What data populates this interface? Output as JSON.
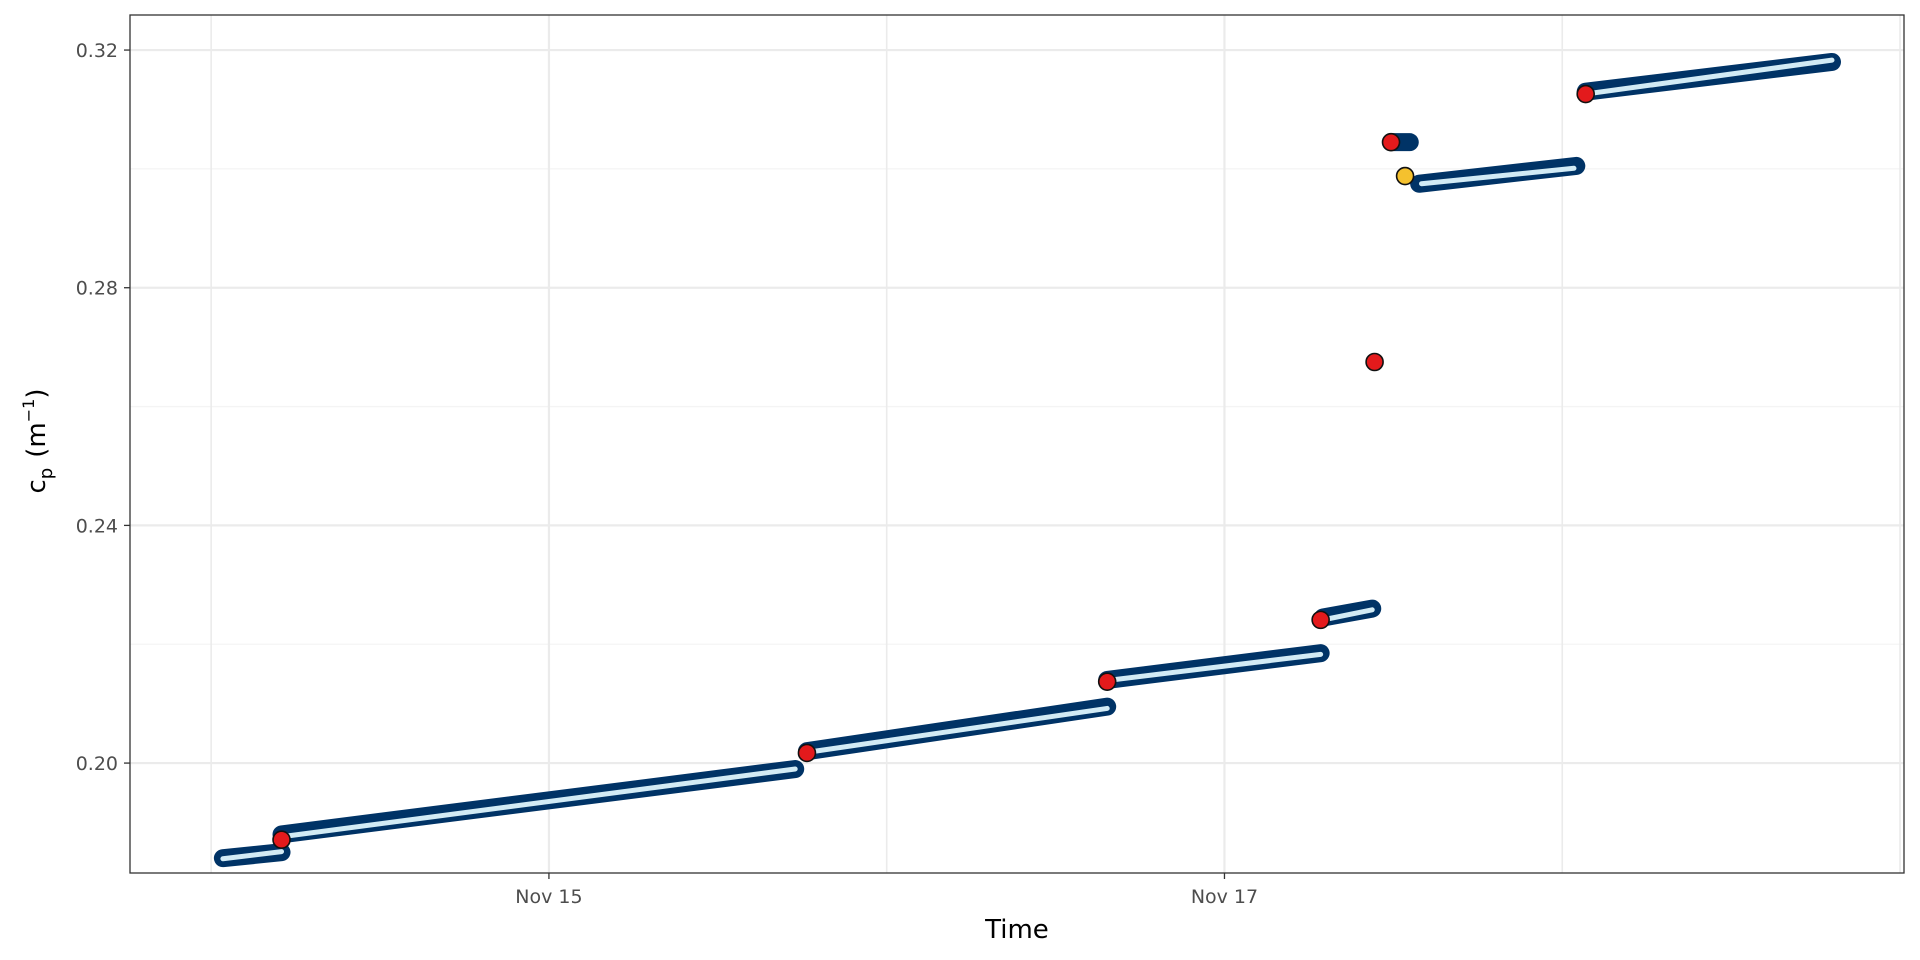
{
  "chart_data": {
    "type": "scatter",
    "title": "",
    "xlabel": "Time",
    "ylabel": {
      "base": "c",
      "subscript": "p",
      "unit_open": "(m",
      "superscript": "−1",
      "unit_close": ")"
    },
    "x_ticks": [
      "Nov 15",
      "Nov 17"
    ],
    "y_ticks": [
      "0.20",
      "0.24",
      "0.28",
      "0.32"
    ],
    "xlim": [
      "2023-11-13T18:14",
      "2023-11-19T00:17"
    ],
    "ylim": [
      0.1815,
      0.3259
    ],
    "grid": true,
    "legend": "none",
    "colors": {
      "data_points": "#003366",
      "fit_line": "#d2ebf5",
      "marker_red": "#e31a1c",
      "marker_yellow": "#f5c12e",
      "marker_stroke": "#111111",
      "grid_major": "#ebebeb",
      "grid_minor": "#f4f4f4",
      "panel_border": "#333333"
    },
    "series": [
      {
        "segment": 1,
        "x": [
          "2023-11-14T00:50",
          "2023-11-14T05:00"
        ],
        "y": [
          0.184,
          0.185
        ]
      },
      {
        "segment": 2,
        "x": [
          "2023-11-14T05:00",
          "2023-11-15T17:30"
        ],
        "y": [
          0.188,
          0.199
        ]
      },
      {
        "segment": 3,
        "x": [
          "2023-11-15T18:20",
          "2023-11-16T15:40"
        ],
        "y": [
          0.202,
          0.2095
        ]
      },
      {
        "segment": 4,
        "x": [
          "2023-11-16T15:40",
          "2023-11-17T06:50"
        ],
        "y": [
          0.214,
          0.2185
        ]
      },
      {
        "segment": 5,
        "x": [
          "2023-11-17T07:00",
          "2023-11-17T10:30"
        ],
        "y": [
          0.2245,
          0.226
        ]
      },
      {
        "segment": 6,
        "x": [
          "2023-11-17T12:00",
          "2023-11-17T13:10"
        ],
        "y": [
          0.3045,
          0.3045
        ]
      },
      {
        "segment": 7,
        "x": [
          "2023-11-17T13:50",
          "2023-11-18T01:00"
        ],
        "y": [
          0.2975,
          0.3005
        ]
      },
      {
        "segment": 8,
        "x": [
          "2023-11-18T01:40",
          "2023-11-18T19:10"
        ],
        "y": [
          0.313,
          0.318
        ]
      }
    ],
    "fit_lines": [
      {
        "x": [
          "2023-11-14T00:50",
          "2023-11-14T05:00"
        ],
        "y": [
          0.1839,
          0.1851
        ]
      },
      {
        "x": [
          "2023-11-14T05:00",
          "2023-11-15T17:30"
        ],
        "y": [
          0.1876,
          0.199
        ]
      },
      {
        "x": [
          "2023-11-15T18:20",
          "2023-11-16T15:40"
        ],
        "y": [
          0.2018,
          0.2092
        ]
      },
      {
        "x": [
          "2023-11-16T15:40",
          "2023-11-17T06:50"
        ],
        "y": [
          0.2139,
          0.2183
        ]
      },
      {
        "x": [
          "2023-11-17T07:00",
          "2023-11-17T10:30"
        ],
        "y": [
          0.2241,
          0.2258
        ]
      },
      {
        "x": [
          "2023-11-17T14:00",
          "2023-11-18T00:50"
        ],
        "y": [
          0.2975,
          0.3001
        ]
      },
      {
        "x": [
          "2023-11-18T01:40",
          "2023-11-18T19:10"
        ],
        "y": [
          0.3126,
          0.3183
        ]
      }
    ],
    "markers": [
      {
        "x": "2023-11-14T05:00",
        "y": 0.1871,
        "color": "red"
      },
      {
        "x": "2023-11-15T18:20",
        "y": 0.2017,
        "color": "red"
      },
      {
        "x": "2023-11-16T15:40",
        "y": 0.2137,
        "color": "red"
      },
      {
        "x": "2023-11-17T06:50",
        "y": 0.2241,
        "color": "red"
      },
      {
        "x": "2023-11-17T10:40",
        "y": 0.2675,
        "color": "red"
      },
      {
        "x": "2023-11-17T11:50",
        "y": 0.3045,
        "color": "red"
      },
      {
        "x": "2023-11-17T12:50",
        "y": 0.2988,
        "color": "yellow"
      },
      {
        "x": "2023-11-18T01:40",
        "y": 0.3126,
        "color": "red"
      }
    ]
  }
}
